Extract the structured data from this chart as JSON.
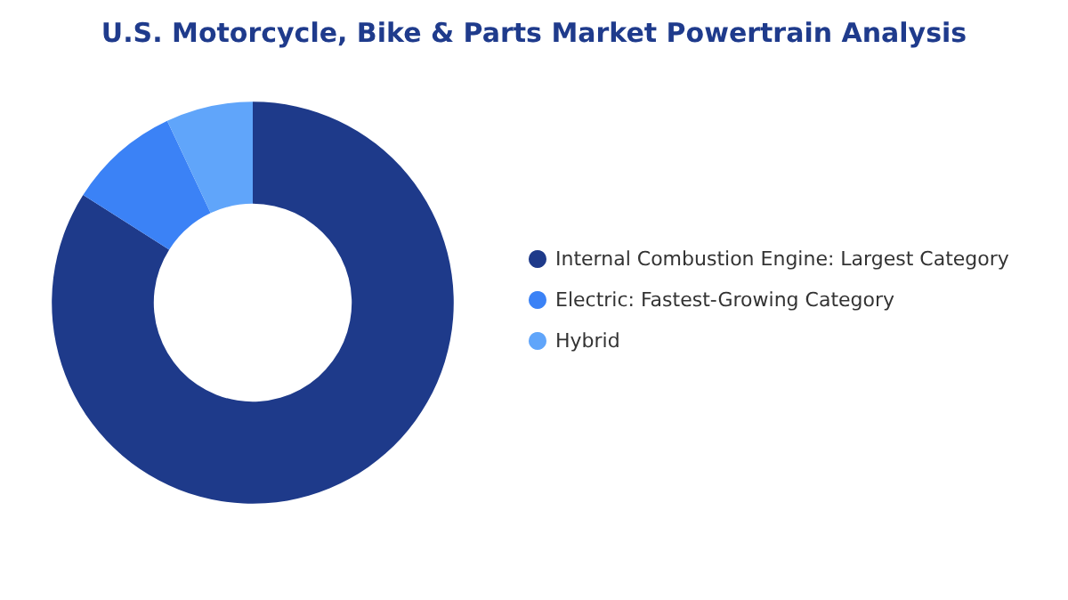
{
  "chart_data": {
    "type": "donut",
    "title": "U.S. Motorcycle, Bike & Parts Market Powertrain Analysis",
    "categories": [
      "Internal Combustion Engine: Largest Category",
      "Electric: Fastest-Growing Category",
      "Hybrid"
    ],
    "values": [
      84,
      9,
      7
    ],
    "colors": [
      "#1e3a8a",
      "#3b82f6",
      "#60a5fa"
    ],
    "legend": "right"
  }
}
